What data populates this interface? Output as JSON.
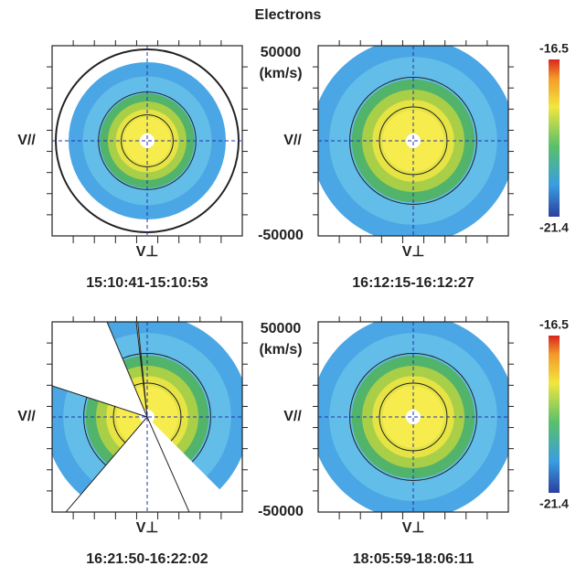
{
  "title": "Electrons",
  "panels": [
    {
      "time": "15:10:41-15:10:53",
      "y_label": "V//",
      "x_label": "V⊥"
    },
    {
      "time": "16:12:15-16:12:27",
      "y_label": "V//",
      "x_label": "V⊥"
    },
    {
      "time": "16:21:50-16:22:02",
      "y_label": "V//",
      "x_label": "V⊥"
    },
    {
      "time": "18:05:59-18:06:11",
      "y_label": "V//",
      "x_label": "V⊥"
    }
  ],
  "axis": {
    "top": "50000",
    "unit": "(km/s)",
    "bottom": "-50000"
  },
  "colorbar": {
    "max": "-16.5",
    "min": "-21.4"
  }
}
